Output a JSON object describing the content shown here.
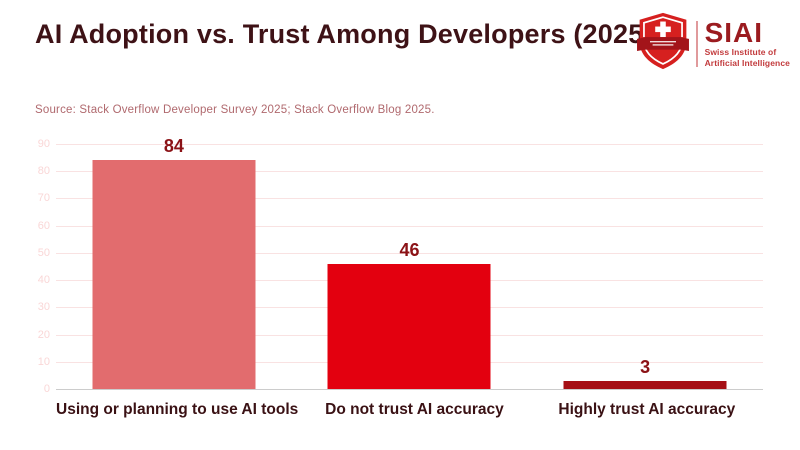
{
  "header": {
    "title": "AI Adoption vs. Trust Among Developers (2025)",
    "source": "Source: Stack Overflow Developer Survey 2025; Stack Overflow Blog 2025."
  },
  "logo": {
    "brand": "SIAI",
    "subtitle": [
      "Swiss Institute of",
      "Artificial Intelligence"
    ],
    "icon": "siai-shield-swiss-cross-icon"
  },
  "chart_data": {
    "type": "bar",
    "title": "AI Adoption vs. Trust Among Developers (2025)",
    "source": "Source: Stack Overflow Developer Survey 2025; Stack Overflow Blog 2025.",
    "categories": [
      "Using or planning to use AI tools",
      "Do not trust AI accuracy",
      "Highly trust AI accuracy"
    ],
    "values": [
      84,
      46,
      3
    ],
    "bar_colors": [
      "#e26c6e",
      "#e3000f",
      "#a50f15"
    ],
    "value_label_color": "#8b1216",
    "xlabel": "",
    "ylabel": "",
    "ylim": [
      0,
      90
    ],
    "yticks": [
      0,
      10,
      20,
      30,
      40,
      50,
      60,
      70,
      80,
      90
    ],
    "grid": true,
    "legend": false
  },
  "colors": {
    "title_color": "#3e1216",
    "source_color": "#b0696e",
    "gridline_color": "#f9e2e2",
    "zero_line_color": "#cccccc",
    "ytick_color": "#fad7d7",
    "category_color": "#3a1114",
    "logo_red": "#d6201f",
    "logo_ribbon_red": "#a3141a",
    "logo_dark_red": "#9b1b1f",
    "logo_subtitle": "#c23a3c"
  }
}
